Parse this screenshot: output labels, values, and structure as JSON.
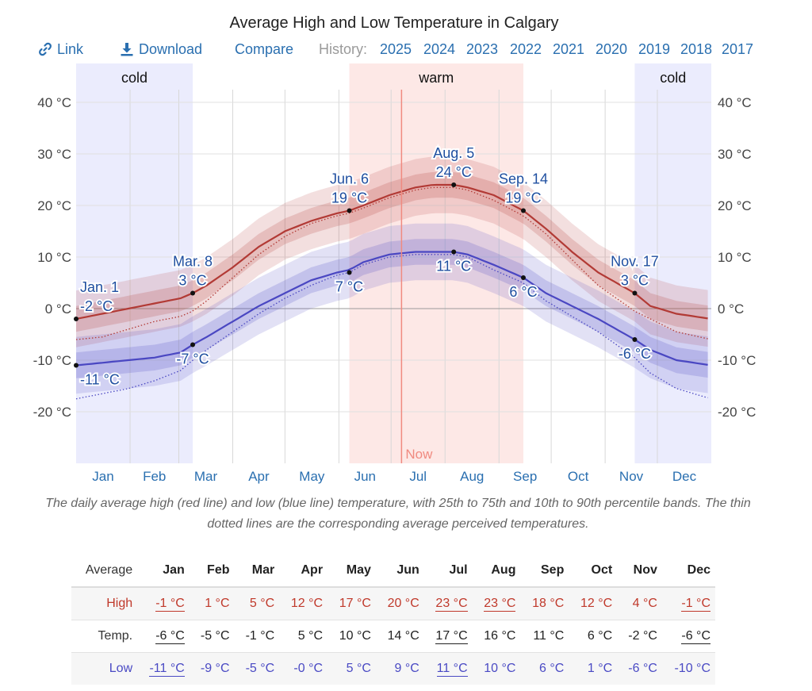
{
  "title": "Average High and Low Temperature in Calgary",
  "toolbar": {
    "link_label": "Link",
    "download_label": "Download",
    "compare_label": "Compare",
    "history_label": "History:",
    "history_years": [
      "2025",
      "2024",
      "2023",
      "2022",
      "2021",
      "2020",
      "2019",
      "2018",
      "2017"
    ],
    "link_icon": "link-icon",
    "download_icon": "download-icon",
    "accent_color": "#2a6fb0"
  },
  "chart_data": {
    "type": "area",
    "title": "Average High and Low Temperature in Calgary",
    "x_unit": "day of year",
    "ylim": [
      -30,
      42
    ],
    "xlim": [
      0,
      365
    ],
    "y_ticks": [
      -20,
      -10,
      0,
      10,
      20,
      30,
      40
    ],
    "y_tick_labels": [
      "-20 °C",
      "-10 °C",
      "0 °C",
      "10 °C",
      "20 °C",
      "30 °C",
      "40 °C"
    ],
    "month_labels": [
      "Jan",
      "Feb",
      "Mar",
      "Apr",
      "May",
      "Jun",
      "Jul",
      "Aug",
      "Sep",
      "Oct",
      "Nov",
      "Dec"
    ],
    "grid": true,
    "seasons": [
      {
        "label": "cold",
        "start": 0,
        "end": 67
      },
      {
        "label": "warm",
        "start": 157,
        "end": 257
      },
      {
        "label": "cold",
        "start": 321,
        "end": 365
      }
    ],
    "now": {
      "label": "Now",
      "day": 187
    },
    "series": [
      {
        "name": "High",
        "color": "#b23a35",
        "days": [
          0,
          15,
          30,
          45,
          60,
          67,
          75,
          90,
          105,
          120,
          135,
          150,
          157,
          165,
          180,
          195,
          205,
          217,
          225,
          240,
          257,
          270,
          285,
          300,
          321,
          330,
          345,
          365
        ],
        "values": [
          -2,
          -1,
          0,
          1,
          2,
          3,
          4.5,
          8,
          12,
          15,
          17,
          18.5,
          19,
          20,
          22,
          23.5,
          24,
          24,
          23.5,
          22,
          19,
          15.5,
          11,
          7,
          3,
          0.5,
          -1,
          -2
        ],
        "p25_offset": 2.5,
        "p10_offset": 5.5
      },
      {
        "name": "Low",
        "color": "#4a47c2",
        "days": [
          0,
          15,
          30,
          45,
          60,
          67,
          75,
          90,
          105,
          120,
          135,
          150,
          157,
          165,
          180,
          195,
          205,
          217,
          225,
          240,
          257,
          270,
          285,
          300,
          321,
          330,
          345,
          365
        ],
        "values": [
          -11,
          -10.5,
          -10,
          -9.5,
          -8.5,
          -7,
          -5.5,
          -2.5,
          0.5,
          3,
          5.5,
          7,
          7.5,
          9,
          10.5,
          11,
          11,
          11,
          10.5,
          8.5,
          6,
          3,
          0.5,
          -2,
          -6,
          -8,
          -10,
          -11
        ],
        "p25_offset": 2.5,
        "p10_offset": 5.5
      }
    ],
    "perceived_high": {
      "color": "#b23a35",
      "values": [
        -6,
        -5.5,
        -4,
        -2.5,
        -1.5,
        -0.5,
        1.5,
        6,
        10.5,
        14,
        16.5,
        18,
        18.5,
        19.5,
        21.5,
        23,
        23.5,
        23.5,
        23,
        21,
        18,
        14.5,
        9.5,
        4.5,
        -0.5,
        -2,
        -4.5,
        -6
      ]
    },
    "perceived_low": {
      "color": "#4a47c2",
      "values": [
        -17.5,
        -16.5,
        -15.5,
        -14,
        -12,
        -10,
        -8,
        -4.5,
        -1,
        2,
        4.5,
        6.5,
        7,
        8.5,
        10,
        10.5,
        10.5,
        10.5,
        10,
        7.5,
        5,
        1.5,
        -1.5,
        -4.5,
        -9.5,
        -12.5,
        -15.5,
        -17.5
      ]
    },
    "annotations": [
      {
        "series": "High",
        "day": 0,
        "value": -2,
        "lines": [
          "Jan. 1",
          "-2 °C"
        ],
        "anchor": "start",
        "pos": "above"
      },
      {
        "series": "Low",
        "day": 0,
        "value": -11,
        "lines": [
          "-11 °C"
        ],
        "anchor": "start",
        "pos": "below"
      },
      {
        "series": "High",
        "day": 67,
        "value": 3,
        "lines": [
          "Mar. 8",
          "3 °C"
        ],
        "anchor": "middle",
        "pos": "above"
      },
      {
        "series": "Low",
        "day": 67,
        "value": -7,
        "lines": [
          "-7 °C"
        ],
        "anchor": "middle",
        "pos": "below"
      },
      {
        "series": "High",
        "day": 157,
        "value": 19,
        "lines": [
          "Jun. 6",
          "19 °C"
        ],
        "anchor": "middle",
        "pos": "above"
      },
      {
        "series": "Low",
        "day": 157,
        "value": 7,
        "lines": [
          "7 °C"
        ],
        "anchor": "middle",
        "pos": "below"
      },
      {
        "series": "High",
        "day": 217,
        "value": 24,
        "lines": [
          "Aug. 5",
          "24 °C"
        ],
        "anchor": "middle",
        "pos": "above"
      },
      {
        "series": "Low",
        "day": 217,
        "value": 11,
        "lines": [
          "11 °C"
        ],
        "anchor": "middle",
        "pos": "below"
      },
      {
        "series": "High",
        "day": 257,
        "value": 19,
        "lines": [
          "Sep. 14",
          "19 °C"
        ],
        "anchor": "middle",
        "pos": "above"
      },
      {
        "series": "Low",
        "day": 257,
        "value": 6,
        "lines": [
          "6 °C"
        ],
        "anchor": "middle",
        "pos": "below"
      },
      {
        "series": "High",
        "day": 321,
        "value": 3,
        "lines": [
          "Nov. 17",
          "3 °C"
        ],
        "anchor": "middle",
        "pos": "above"
      },
      {
        "series": "Low",
        "day": 321,
        "value": -6,
        "lines": [
          "-6 °C"
        ],
        "anchor": "middle",
        "pos": "below"
      }
    ]
  },
  "caption": "The daily average high (red line) and low (blue line) temperature, with 25th to 75th and 10th to 90th percentile bands. The thin dotted lines are the corresponding average perceived temperatures.",
  "table": {
    "header_label": "Average",
    "months": [
      "Jan",
      "Feb",
      "Mar",
      "Apr",
      "May",
      "Jun",
      "Jul",
      "Aug",
      "Sep",
      "Oct",
      "Nov",
      "Dec"
    ],
    "rows": [
      {
        "key": "high",
        "label": "High",
        "values": [
          "-1 °C",
          "1 °C",
          "5 °C",
          "12 °C",
          "17 °C",
          "20 °C",
          "23 °C",
          "23 °C",
          "18 °C",
          "12 °C",
          "4 °C",
          "-1 °C"
        ],
        "underlined": [
          0,
          6,
          7,
          11
        ]
      },
      {
        "key": "temp",
        "label": "Temp.",
        "values": [
          "-6 °C",
          "-5 °C",
          "-1 °C",
          "5 °C",
          "10 °C",
          "14 °C",
          "17 °C",
          "16 °C",
          "11 °C",
          "6 °C",
          "-2 °C",
          "-6 °C"
        ],
        "underlined": [
          0,
          6,
          11
        ]
      },
      {
        "key": "low",
        "label": "Low",
        "values": [
          "-11 °C",
          "-9 °C",
          "-5 °C",
          "-0 °C",
          "5 °C",
          "9 °C",
          "11 °C",
          "10 °C",
          "6 °C",
          "1 °C",
          "-6 °C",
          "-10 °C"
        ],
        "underlined": [
          0,
          6
        ]
      }
    ]
  }
}
